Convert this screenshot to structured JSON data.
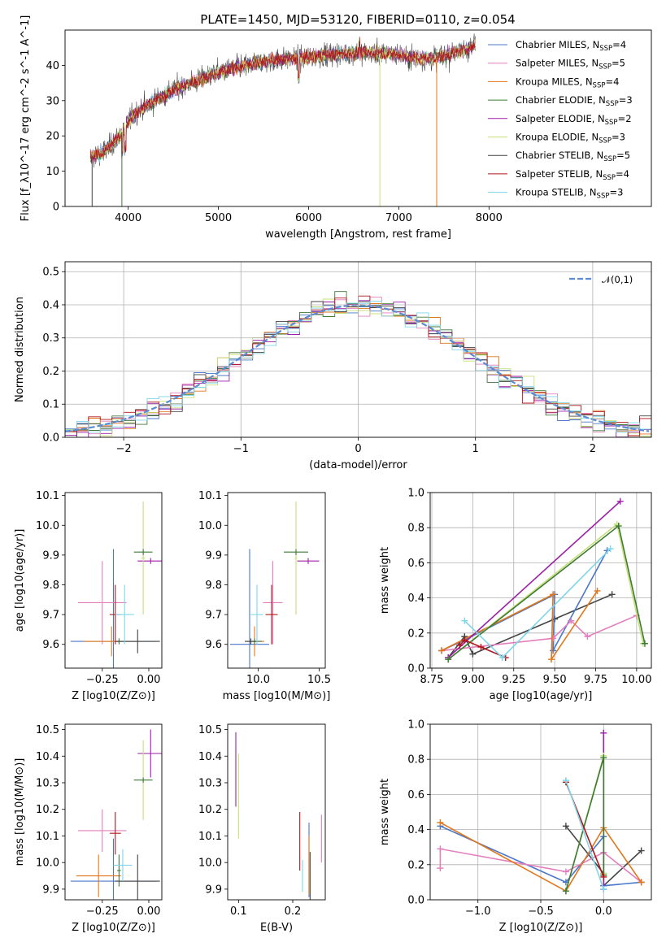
{
  "title": "PLATE=1450, MJD=53120, FIBERID=0110, z=0.054",
  "colors": [
    "#4a77c9",
    "#e37fbd",
    "#e0771b",
    "#3e7a36",
    "#9b1ea7",
    "#c7e07a",
    "#444444",
    "#b0161a",
    "#7fd6e8"
  ],
  "chart_data": [
    {
      "id": "spectrum",
      "type": "line",
      "xlabel": "wavelength [Angstrom, rest frame]",
      "ylabel": "Flux [f_λ10^-17 erg cm^-2 s^-1 A^-1]",
      "xlim": [
        3300,
        9800
      ],
      "ylim": [
        0,
        50
      ],
      "xticks": [
        4000,
        5000,
        6000,
        7000,
        8000
      ],
      "yticks": [
        0,
        10,
        20,
        30,
        40
      ],
      "grid": false,
      "legend_position": "right",
      "legend": [
        {
          "base": "Chabrier MILES, N",
          "sub": "SSP",
          "eq": "=4"
        },
        {
          "base": "Salpeter MILES, N",
          "sub": "SSP",
          "eq": "=5"
        },
        {
          "base": "Kroupa MILES, N",
          "sub": "SSP",
          "eq": "=4"
        },
        {
          "base": "Chabrier ELODIE, N",
          "sub": "SSP",
          "eq": "=3"
        },
        {
          "base": "Salpeter ELODIE, N",
          "sub": "SSP",
          "eq": "=2"
        },
        {
          "base": "Kroupa ELODIE, N",
          "sub": "SSP",
          "eq": "=3"
        },
        {
          "base": "Chabrier STELIB, N",
          "sub": "SSP",
          "eq": "=5"
        },
        {
          "base": "Salpeter STELIB, N",
          "sub": "SSP",
          "eq": "=4"
        },
        {
          "base": "Kroupa STELIB, N",
          "sub": "SSP",
          "eq": "=3"
        }
      ],
      "continuum": [
        [
          3580,
          14
        ],
        [
          3700,
          15
        ],
        [
          3800,
          17
        ],
        [
          3900,
          20
        ],
        [
          4000,
          24
        ],
        [
          4100,
          27
        ],
        [
          4300,
          30
        ],
        [
          4500,
          33
        ],
        [
          4700,
          35
        ],
        [
          5000,
          38
        ],
        [
          5300,
          40
        ],
        [
          5600,
          41.5
        ],
        [
          5900,
          42
        ],
        [
          6200,
          43
        ],
        [
          6500,
          43.5
        ],
        [
          6800,
          43.5
        ],
        [
          7000,
          43
        ],
        [
          7200,
          42
        ],
        [
          7400,
          42
        ],
        [
          7600,
          43.5
        ],
        [
          7800,
          45
        ],
        [
          7850,
          46
        ]
      ]
    },
    {
      "id": "residuals",
      "type": "step",
      "xlabel": "(data-model)/error",
      "ylabel": "Normed distribution",
      "xlim": [
        -2.5,
        2.5
      ],
      "ylim": [
        0,
        0.53
      ],
      "xticks": [
        -2,
        -1,
        0,
        1,
        2
      ],
      "xticklabels": [
        "−2",
        "−1",
        "0",
        "1",
        "2"
      ],
      "yticks": [
        0.0,
        0.1,
        0.2,
        0.3,
        0.4,
        0.5
      ],
      "yticklabels": [
        "0.0",
        "0.1",
        "0.2",
        "0.3",
        "0.4",
        "0.5"
      ],
      "grid": true,
      "legend_position": "top-right",
      "legend": [
        {
          "label": "𝒩(0,1)"
        }
      ],
      "bin_width": 0.1,
      "bins_start": -2.5
    },
    {
      "id": "z-age",
      "type": "errorbar",
      "xlabel": "Z [log10(Z/Z⊙)]",
      "ylabel": "age [log10(age/yr)]",
      "xlim": [
        -0.45,
        0.07
      ],
      "ylim": [
        9.52,
        10.11
      ],
      "xticks": [
        -0.25,
        0.0
      ],
      "xticklabels": [
        "−0.25",
        "0.00"
      ],
      "yticks": [
        9.6,
        9.7,
        9.8,
        9.9,
        10.0,
        10.1
      ],
      "yticklabels": [
        "9.6",
        "9.7",
        "9.8",
        "9.9",
        "10.0",
        "10.1"
      ],
      "points": [
        {
          "c": 0,
          "x": -0.19,
          "xe": 0.23,
          "y": 9.61,
          "ye": 0.31
        },
        {
          "c": 1,
          "x": -0.25,
          "xe": 0.13,
          "y": 9.74,
          "ye": 0.14
        },
        {
          "c": 2,
          "x": -0.2,
          "xe": 0.15,
          "y": 9.61,
          "ye": 0.05
        },
        {
          "c": 3,
          "x": -0.16,
          "xe": 0.01,
          "y": 9.61,
          "ye": 0.01
        },
        {
          "c": 4,
          "x": 0.01,
          "xe": 0.07,
          "y": 9.88,
          "ye": 0.01
        },
        {
          "c": 5,
          "x": -0.03,
          "xe": 0.01,
          "y": 9.89,
          "ye": 0.19
        },
        {
          "c": 6,
          "x": -0.06,
          "xe": 0.12,
          "y": 9.61,
          "ye": 0.04
        },
        {
          "c": 7,
          "x": -0.18,
          "xe": 0.03,
          "y": 9.7,
          "ye": 0.1
        },
        {
          "c": 8,
          "x": -0.13,
          "xe": 0.05,
          "y": 9.7,
          "ye": 0.1
        },
        {
          "c": 3,
          "x": -0.03,
          "xe": 0.05,
          "y": 9.91,
          "ye": 0.01
        }
      ]
    },
    {
      "id": "mass-age",
      "type": "errorbar",
      "xlabel": "mass [log10(M/M⊙)]",
      "ylabel": "",
      "xlim": [
        9.75,
        10.55
      ],
      "ylim": [
        9.52,
        10.11
      ],
      "xticks": [
        10.0,
        10.5
      ],
      "xticklabels": [
        "10.0",
        "10.5"
      ],
      "yticks": [
        9.6,
        9.7,
        9.8,
        9.9,
        10.0,
        10.1
      ],
      "yticklabels": [
        "9.6",
        "9.7",
        "9.8",
        "9.9",
        "10.0",
        "10.1"
      ],
      "points": [
        {
          "c": 0,
          "x": 9.93,
          "xe": 0.16,
          "y": 9.6,
          "ye": 0.32
        },
        {
          "c": 1,
          "x": 10.12,
          "xe": 0.08,
          "y": 9.74,
          "ye": 0.14
        },
        {
          "c": 2,
          "x": 9.97,
          "xe": 0.08,
          "y": 9.61,
          "ye": 0.05
        },
        {
          "c": 3,
          "x": 9.97,
          "xe": 0.06,
          "y": 9.61,
          "ye": 0.01
        },
        {
          "c": 4,
          "x": 10.41,
          "xe": 0.09,
          "y": 9.88,
          "ye": 0.01
        },
        {
          "c": 5,
          "x": 10.31,
          "xe": 0.01,
          "y": 9.89,
          "ye": 0.19
        },
        {
          "c": 6,
          "x": 9.94,
          "xe": 0.05,
          "y": 9.61,
          "ye": 0.01
        },
        {
          "c": 7,
          "x": 10.11,
          "xe": 0.05,
          "y": 9.7,
          "ye": 0.1
        },
        {
          "c": 8,
          "x": 9.99,
          "xe": 0.05,
          "y": 9.7,
          "ye": 0.1
        },
        {
          "c": 3,
          "x": 10.31,
          "xe": 0.1,
          "y": 9.91,
          "ye": 0.01
        }
      ]
    },
    {
      "id": "age-weight",
      "type": "line",
      "xlabel": "age [log10(age/yr)]",
      "ylabel": "mass weight",
      "xlim": [
        8.74,
        10.09
      ],
      "ylim": [
        0,
        1
      ],
      "xticks": [
        8.75,
        9.0,
        9.25,
        9.5,
        9.75,
        10.0
      ],
      "xticklabels": [
        "8.75",
        "9.00",
        "9.25",
        "9.50",
        "9.75",
        "10.00"
      ],
      "yticks": [
        0.0,
        0.2,
        0.4,
        0.6,
        0.8,
        1.0
      ],
      "yticklabels": [
        "0.0",
        "0.2",
        "0.4",
        "0.6",
        "0.8",
        "1.0"
      ],
      "grid": true,
      "series": [
        {
          "c": 6,
          "pts": [
            [
              8.85,
              0.06
            ],
            [
              8.95,
              0.18
            ],
            [
              9.0,
              0.08
            ],
            [
              9.5,
              0.28
            ],
            [
              9.85,
              0.42
            ]
          ]
        },
        {
          "c": 0,
          "pts": [
            [
              8.81,
              0.1
            ],
            [
              8.95,
              0.16
            ],
            [
              9.5,
              0.42
            ],
            [
              9.49,
              0.1
            ],
            [
              9.82,
              0.67
            ]
          ]
        },
        {
          "c": 1,
          "pts": [
            [
              8.81,
              0.1
            ],
            [
              9.49,
              0.17
            ],
            [
              9.6,
              0.27
            ],
            [
              9.7,
              0.18
            ],
            [
              10.0,
              0.3
            ]
          ]
        },
        {
          "c": 2,
          "pts": [
            [
              8.81,
              0.1
            ],
            [
              9.49,
              0.42
            ],
            [
              9.48,
              0.05
            ],
            [
              9.76,
              0.44
            ]
          ]
        },
        {
          "c": 4,
          "pts": [
            [
              8.85,
              0.06
            ],
            [
              9.9,
              0.95
            ]
          ]
        },
        {
          "c": 5,
          "pts": [
            [
              8.85,
              0.05
            ],
            [
              9.88,
              0.82
            ],
            [
              10.04,
              0.14
            ]
          ]
        },
        {
          "c": 3,
          "pts": [
            [
              8.85,
              0.05
            ],
            [
              9.89,
              0.81
            ],
            [
              10.05,
              0.14
            ]
          ]
        },
        {
          "c": 7,
          "pts": [
            [
              8.92,
              0.13
            ],
            [
              8.95,
              0.16
            ],
            [
              9.05,
              0.12
            ],
            [
              9.2,
              0.06
            ]
          ]
        },
        {
          "c": 8,
          "pts": [
            [
              8.95,
              0.27
            ],
            [
              9.18,
              0.06
            ],
            [
              9.84,
              0.68
            ]
          ]
        }
      ]
    },
    {
      "id": "z-mass",
      "type": "errorbar",
      "xlabel": "Z [log10(Z/Z⊙)]",
      "ylabel": "mass [log10(M/M⊙)]",
      "xlim": [
        -0.45,
        0.07
      ],
      "ylim": [
        9.86,
        10.52
      ],
      "xticks": [
        -0.25,
        0.0
      ],
      "xticklabels": [
        "−0.25",
        "0.00"
      ],
      "yticks": [
        9.9,
        10.0,
        10.1,
        10.2,
        10.3,
        10.4,
        10.5
      ],
      "yticklabels": [
        "9.9",
        "10.0",
        "10.1",
        "10.2",
        "10.3",
        "10.4",
        "10.5"
      ],
      "points": [
        {
          "c": 0,
          "x": -0.19,
          "xe": 0.23,
          "y": 9.93,
          "ye": 0.16
        },
        {
          "c": 1,
          "x": -0.25,
          "xe": 0.13,
          "y": 10.12,
          "ye": 0.08
        },
        {
          "c": 2,
          "x": -0.27,
          "xe": 0.12,
          "y": 9.95,
          "ye": 0.08
        },
        {
          "c": 3,
          "x": -0.16,
          "xe": 0.01,
          "y": 9.97,
          "ye": 0.06
        },
        {
          "c": 4,
          "x": 0.01,
          "xe": 0.07,
          "y": 10.41,
          "ye": 0.09
        },
        {
          "c": 5,
          "x": -0.03,
          "xe": 0.01,
          "y": 10.31,
          "ye": 0.15
        },
        {
          "c": 6,
          "x": -0.06,
          "xe": 0.12,
          "y": 9.93,
          "ye": 0.1
        },
        {
          "c": 7,
          "x": -0.18,
          "xe": 0.03,
          "y": 10.11,
          "ye": 0.08
        },
        {
          "c": 8,
          "x": -0.14,
          "xe": 0.05,
          "y": 9.99,
          "ye": 0.06
        },
        {
          "c": 3,
          "x": -0.03,
          "xe": 0.05,
          "y": 10.31,
          "ye": 0.01
        }
      ]
    },
    {
      "id": "ebv-mass",
      "type": "errorbar",
      "xlabel": "E(B-V)",
      "ylabel": "",
      "xlim": [
        0.08,
        0.26
      ],
      "ylim": [
        9.86,
        10.52
      ],
      "xticks": [
        0.1,
        0.2
      ],
      "xticklabels": [
        "0.1",
        "0.2"
      ],
      "yticks": [
        9.9,
        10.0,
        10.1,
        10.2,
        10.3,
        10.4,
        10.5
      ],
      "yticklabels": [
        "9.9",
        "10.0",
        "10.1",
        "10.2",
        "10.3",
        "10.4",
        "10.5"
      ],
      "points": [
        {
          "c": 0,
          "x": 0.23,
          "xe": 0.0,
          "y": 10.01,
          "ye": 0.14
        },
        {
          "c": 1,
          "x": 0.253,
          "xe": 0.0,
          "y": 10.09,
          "ye": 0.09
        },
        {
          "c": 2,
          "x": 0.23,
          "xe": 0.0,
          "y": 9.99,
          "ye": 0.11
        },
        {
          "c": 4,
          "x": 0.095,
          "xe": 0.0,
          "y": 10.35,
          "ye": 0.14
        },
        {
          "c": 5,
          "x": 0.1,
          "xe": 0.0,
          "y": 10.25,
          "ye": 0.16
        },
        {
          "c": 6,
          "x": 0.232,
          "xe": 0.0,
          "y": 9.95,
          "ye": 0.09
        },
        {
          "c": 7,
          "x": 0.213,
          "xe": 0.0,
          "y": 10.08,
          "ye": 0.11
        },
        {
          "c": 8,
          "x": 0.218,
          "xe": 0.0,
          "y": 9.95,
          "ye": 0.06
        }
      ]
    },
    {
      "id": "z-weight",
      "type": "line",
      "xlabel": "Z [log10(Z/Z⊙)]",
      "ylabel": "mass weight",
      "xlim": [
        -1.38,
        0.38
      ],
      "ylim": [
        0,
        1
      ],
      "xticks": [
        -1.0,
        -0.5,
        0.0
      ],
      "xticklabels": [
        "−1.0",
        "−0.5",
        "0.0"
      ],
      "yticks": [
        0.0,
        0.2,
        0.4,
        0.6,
        0.8,
        1.0
      ],
      "yticklabels": [
        "0.0",
        "0.2",
        "0.4",
        "0.6",
        "0.8",
        "1.0"
      ],
      "grid": true,
      "series": [
        {
          "c": 6,
          "pts": [
            [
              -0.3,
              0.42
            ],
            [
              0.0,
              0.15
            ],
            [
              0.0,
              0.08
            ],
            [
              0.3,
              0.28
            ]
          ]
        },
        {
          "c": 0,
          "pts": [
            [
              -1.3,
              0.42
            ],
            [
              -0.3,
              0.1
            ],
            [
              0.0,
              0.36
            ],
            [
              0.0,
              0.08
            ],
            [
              0.3,
              0.1
            ]
          ]
        },
        {
          "c": 1,
          "pts": [
            [
              -1.3,
              0.18
            ],
            [
              -1.3,
              0.29
            ],
            [
              -0.3,
              0.16
            ],
            [
              0.0,
              0.27
            ],
            [
              0.3,
              0.1
            ]
          ]
        },
        {
          "c": 2,
          "pts": [
            [
              -1.3,
              0.44
            ],
            [
              -0.3,
              0.05
            ],
            [
              0.0,
              0.41
            ],
            [
              0.3,
              0.1
            ]
          ]
        },
        {
          "c": 4,
          "pts": [
            [
              0.0,
              0.95
            ],
            [
              0.0,
              0.06
            ]
          ]
        },
        {
          "c": 5,
          "pts": [
            [
              -0.3,
              0.05
            ],
            [
              0.0,
              0.82
            ],
            [
              0.0,
              0.15
            ]
          ]
        },
        {
          "c": 3,
          "pts": [
            [
              -0.3,
              0.05
            ],
            [
              0.0,
              0.81
            ],
            [
              0.0,
              0.14
            ]
          ]
        },
        {
          "c": 7,
          "pts": [
            [
              -0.3,
              0.67
            ],
            [
              0.0,
              0.13
            ]
          ]
        },
        {
          "c": 8,
          "pts": [
            [
              -0.3,
              0.68
            ],
            [
              0.0,
              0.06
            ]
          ]
        }
      ]
    }
  ]
}
